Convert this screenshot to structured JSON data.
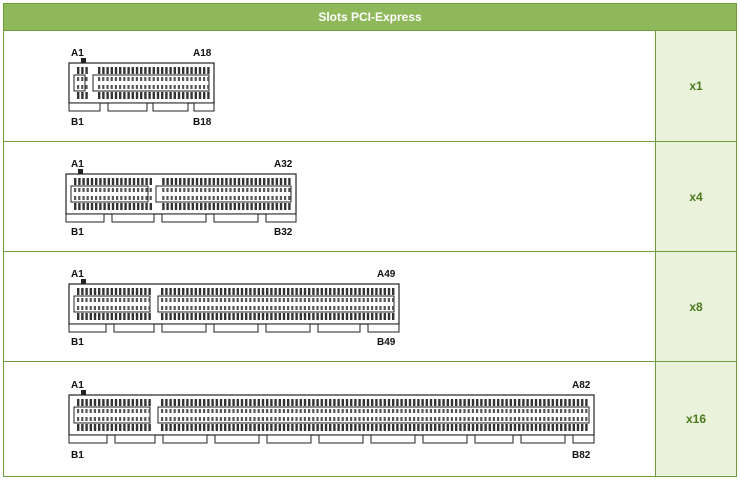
{
  "header": {
    "title": "Slots PCI-Express"
  },
  "rows": [
    {
      "width_label": "x1",
      "top_left": "A1",
      "top_right": "A18",
      "bottom_left": "B1",
      "bottom_right": "B18"
    },
    {
      "width_label": "x4",
      "top_left": "A1",
      "top_right": "A32",
      "bottom_left": "B1",
      "bottom_right": "B32"
    },
    {
      "width_label": "x8",
      "top_left": "A1",
      "top_right": "A49",
      "bottom_left": "B1",
      "bottom_right": "B49"
    },
    {
      "width_label": "x16",
      "top_left": "A1",
      "top_right": "A82",
      "bottom_left": "B1",
      "bottom_right": "B82"
    }
  ],
  "colors": {
    "header_bg": "#8fb85a",
    "border": "#6f9b3a",
    "side_cell_bg": "#eaf2dc",
    "side_text": "#4a7a1a"
  }
}
